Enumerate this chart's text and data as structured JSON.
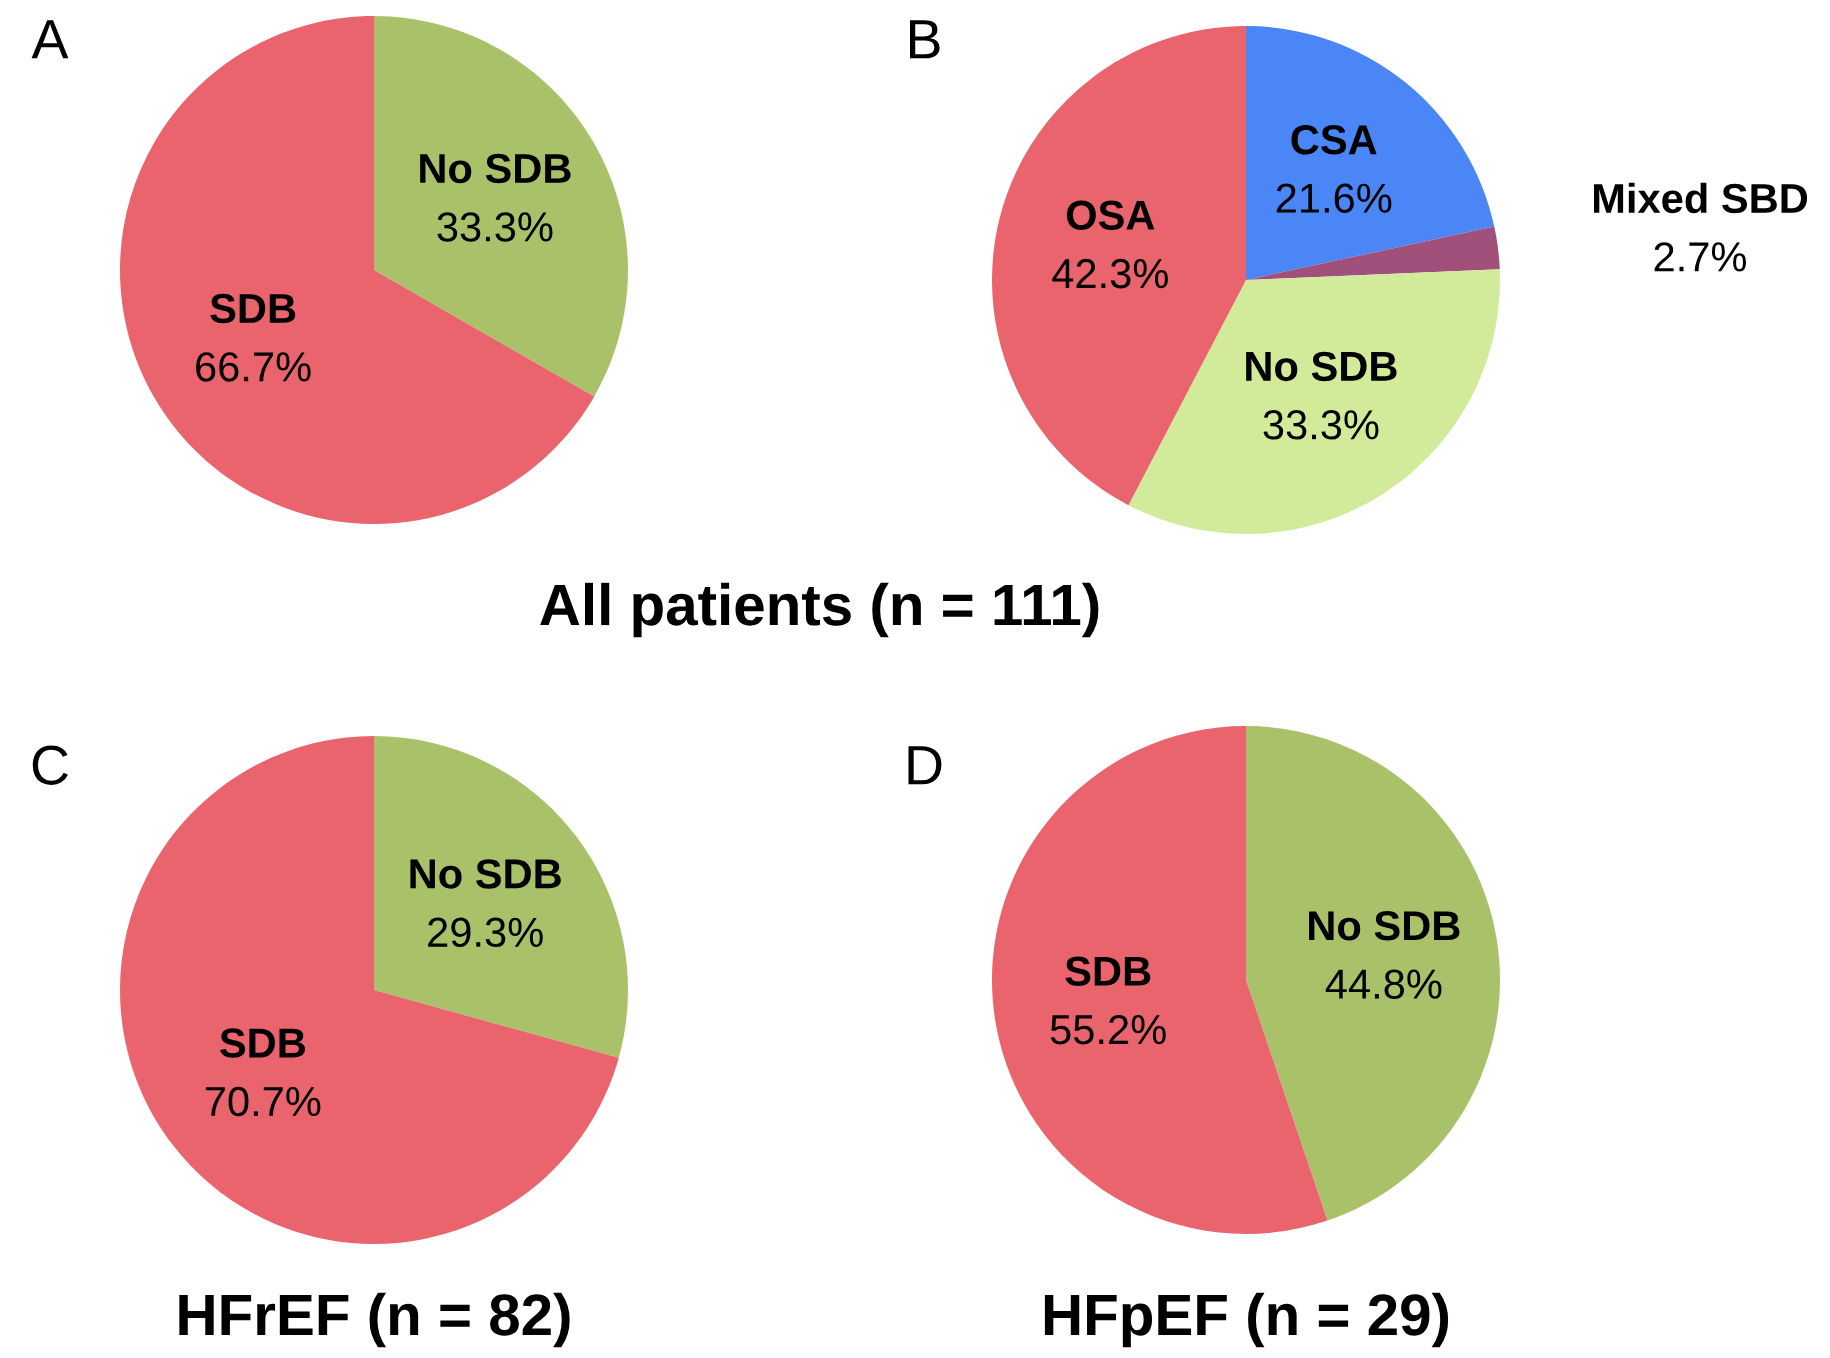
{
  "chart_data": [
    {
      "type": "pie",
      "annotations": [
        "A",
        "All patients (n = 111)"
      ],
      "categories": [
        "No SDB",
        "SDB"
      ],
      "values": [
        33.3,
        66.7
      ],
      "colors": [
        "#a9c26a",
        "#e9646c"
      ],
      "value_labels": [
        "33.3%",
        "66.7%"
      ]
    },
    {
      "type": "pie",
      "annotations": [
        "B"
      ],
      "categories": [
        "CSA",
        "Mixed SBD",
        "No SDB",
        "OSA"
      ],
      "values": [
        21.6,
        2.7,
        33.3,
        42.3
      ],
      "colors": [
        "#4a86f5",
        "#a0507a",
        "#d2eb9a",
        "#e9646c"
      ],
      "value_labels": [
        "21.6%",
        "2.7%",
        "33.3%",
        "42.3%"
      ]
    },
    {
      "type": "pie",
      "annotations": [
        "C"
      ],
      "title": "HFrEF (n = 82)",
      "categories": [
        "No SDB",
        "SDB"
      ],
      "values": [
        29.3,
        70.7
      ],
      "colors": [
        "#a9c26a",
        "#e9646c"
      ],
      "value_labels": [
        "29.3%",
        "70.7%"
      ]
    },
    {
      "type": "pie",
      "annotations": [
        "D"
      ],
      "title": "HFpEF (n = 29)",
      "categories": [
        "No SDB",
        "SDB"
      ],
      "values": [
        44.8,
        55.2
      ],
      "colors": [
        "#a9c26a",
        "#e9646c"
      ],
      "value_labels": [
        "44.8%",
        "55.2%"
      ]
    }
  ]
}
